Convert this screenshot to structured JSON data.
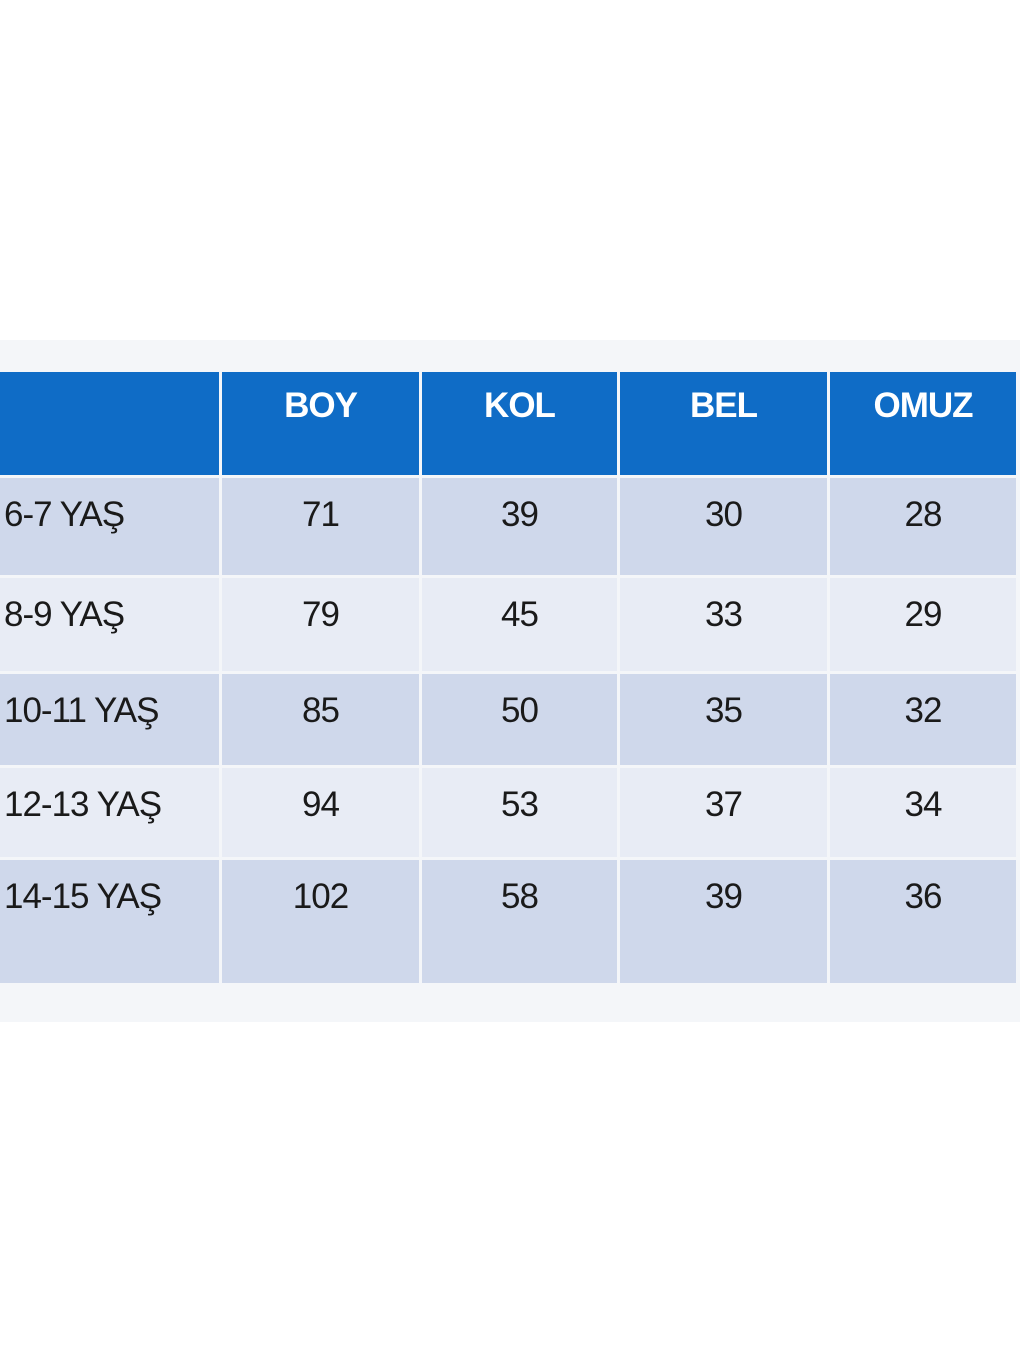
{
  "table": {
    "columns": [
      "BOY",
      "KOL",
      "BEL",
      "OMUZ"
    ],
    "rows": [
      {
        "label": "6-7 YAŞ",
        "values": [
          71,
          39,
          30,
          28
        ]
      },
      {
        "label": "8-9 YAŞ",
        "values": [
          79,
          45,
          33,
          29
        ]
      },
      {
        "label": "10-11 YAŞ",
        "values": [
          85,
          50,
          35,
          32
        ]
      },
      {
        "label": "12-13 YAŞ",
        "values": [
          94,
          53,
          37,
          34
        ]
      },
      {
        "label": "14-15 YAŞ",
        "values": [
          102,
          58,
          39,
          36
        ]
      }
    ]
  }
}
